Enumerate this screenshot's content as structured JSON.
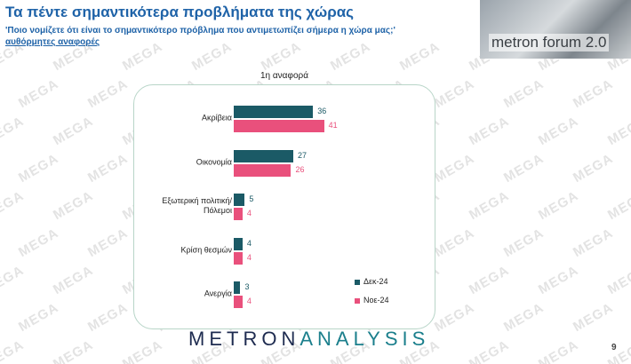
{
  "header": {
    "title": "Τα πέντε σημαντικότερα προβλήματα της χώρας",
    "question": "'Ποιο νομίζετε ότι είναι το σημαντικότερο πρόβλημα που αντιμετωπίζει σήμερα η χώρα μας;'",
    "note": "αυθόρμητες αναφορές",
    "logo": "metron forum 2.0"
  },
  "watermark": "MEGA",
  "chart_data": {
    "type": "bar",
    "orientation": "horizontal",
    "title": "1η αναφορά",
    "categories": [
      "Ακρίβεια",
      "Οικονομία",
      "Εξωτερική πολιτική/Πόλεμοι",
      "Κρίση θεσμών",
      "Ανεργία"
    ],
    "series": [
      {
        "name": "Δεκ-24",
        "color": "#1b5a66",
        "values": [
          36,
          27,
          5,
          4,
          3
        ]
      },
      {
        "name": "Νοε-24",
        "color": "#e9507c",
        "values": [
          41,
          26,
          4,
          4,
          4
        ]
      }
    ],
    "legend": "lower-right"
  },
  "footer": {
    "brand_part1": "METRON",
    "brand_part2": "ANALYSIS",
    "page": "9"
  }
}
